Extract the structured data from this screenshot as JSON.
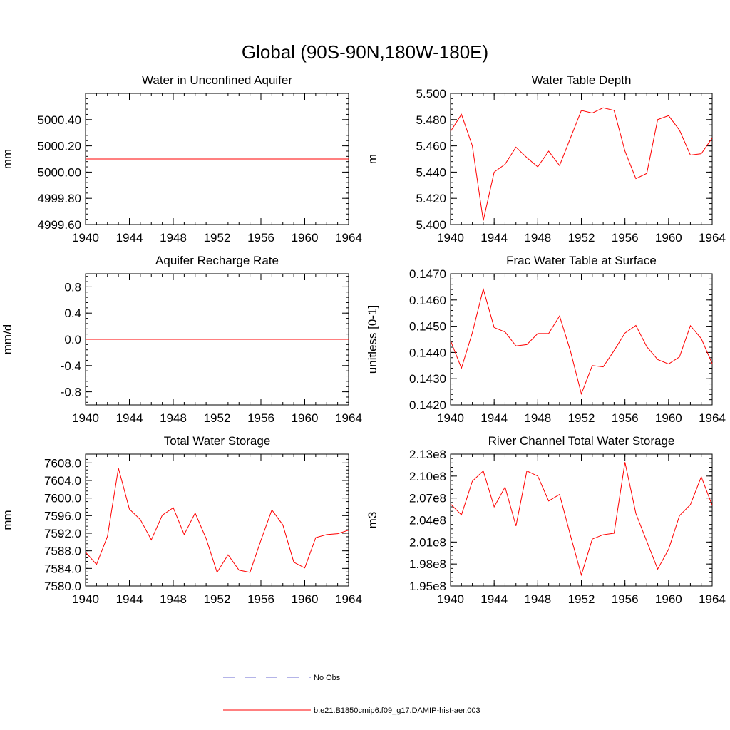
{
  "title": "Global (90S-90N,180W-180E)",
  "legend": {
    "placement": "bottom-center",
    "entries": [
      {
        "label": "No Obs",
        "color": "#6a6ad0",
        "dash": true
      },
      {
        "label": "b.e21.B1850cmip6.f09_g17.DAMIP-hist-aer.003",
        "color": "#ff0000",
        "dash": false
      }
    ]
  },
  "chart_data": [
    {
      "type": "line",
      "title": "Water in Unconfined Aquifer",
      "xlabel": "",
      "ylabel": "mm",
      "xlim": [
        1940,
        1964
      ],
      "ylim": [
        4999.6,
        5000.6
      ],
      "xticks": [
        1940,
        1944,
        1948,
        1952,
        1956,
        1960,
        1964
      ],
      "xtick_labels": [
        "1940",
        "1944",
        "1948",
        "1952",
        "1956",
        "1960",
        "1964"
      ],
      "yticks": [
        4999.6,
        4999.8,
        5000.0,
        5000.2,
        5000.4
      ],
      "ytick_labels": [
        "4999.60",
        "4999.80",
        "5000.00",
        "5000.20",
        "5000.40"
      ],
      "color": "#ff0000",
      "x": [
        1940,
        1941,
        1942,
        1943,
        1944,
        1945,
        1946,
        1947,
        1948,
        1949,
        1950,
        1951,
        1952,
        1953,
        1954,
        1955,
        1956,
        1957,
        1958,
        1959,
        1960,
        1961,
        1962,
        1963,
        1964
      ],
      "values": [
        5000.1,
        5000.1,
        5000.1,
        5000.1,
        5000.1,
        5000.1,
        5000.1,
        5000.1,
        5000.1,
        5000.1,
        5000.1,
        5000.1,
        5000.1,
        5000.1,
        5000.1,
        5000.1,
        5000.1,
        5000.1,
        5000.1,
        5000.1,
        5000.1,
        5000.1,
        5000.1,
        5000.1,
        5000.1
      ]
    },
    {
      "type": "line",
      "title": "Water Table Depth",
      "xlabel": "",
      "ylabel": "m",
      "xlim": [
        1940,
        1964
      ],
      "ylim": [
        5.4,
        5.5
      ],
      "xticks": [
        1940,
        1944,
        1948,
        1952,
        1956,
        1960,
        1964
      ],
      "xtick_labels": [
        "1940",
        "1944",
        "1948",
        "1952",
        "1956",
        "1960",
        "1964"
      ],
      "yticks": [
        5.4,
        5.42,
        5.44,
        5.46,
        5.48,
        5.5
      ],
      "ytick_labels": [
        "5.400",
        "5.420",
        "5.440",
        "5.460",
        "5.480",
        "5.500"
      ],
      "color": "#ff0000",
      "x": [
        1940,
        1941,
        1942,
        1943,
        1944,
        1945,
        1946,
        1947,
        1948,
        1949,
        1950,
        1951,
        1952,
        1953,
        1954,
        1955,
        1956,
        1957,
        1958,
        1959,
        1960,
        1961,
        1962,
        1963,
        1964
      ],
      "values": [
        5.471,
        5.484,
        5.46,
        5.403,
        5.44,
        5.446,
        5.459,
        5.451,
        5.444,
        5.456,
        5.445,
        5.466,
        5.487,
        5.485,
        5.489,
        5.487,
        5.456,
        5.435,
        5.439,
        5.48,
        5.483,
        5.472,
        5.453,
        5.454,
        5.466
      ]
    },
    {
      "type": "line",
      "title": "Aquifer Recharge Rate",
      "xlabel": "",
      "ylabel": "mm/d",
      "xlim": [
        1940,
        1964
      ],
      "ylim": [
        -1.0,
        1.0
      ],
      "xticks": [
        1940,
        1944,
        1948,
        1952,
        1956,
        1960,
        1964
      ],
      "xtick_labels": [
        "1940",
        "1944",
        "1948",
        "1952",
        "1956",
        "1960",
        "1964"
      ],
      "yticks": [
        -0.8,
        -0.4,
        0.0,
        0.4,
        0.8
      ],
      "ytick_labels": [
        "-0.8",
        "-0.4",
        "0.0",
        "0.4",
        "0.8"
      ],
      "color": "#ff0000",
      "x": [
        1940,
        1941,
        1942,
        1943,
        1944,
        1945,
        1946,
        1947,
        1948,
        1949,
        1950,
        1951,
        1952,
        1953,
        1954,
        1955,
        1956,
        1957,
        1958,
        1959,
        1960,
        1961,
        1962,
        1963,
        1964
      ],
      "values": [
        0,
        0,
        0,
        0,
        0,
        0,
        0,
        0,
        0,
        0,
        0,
        0,
        0,
        0,
        0,
        0,
        0,
        0,
        0,
        0,
        0,
        0,
        0,
        0,
        0
      ]
    },
    {
      "type": "line",
      "title": "Frac Water Table at Surface",
      "xlabel": "",
      "ylabel": "unitless [0-1]",
      "xlim": [
        1940,
        1964
      ],
      "ylim": [
        0.142,
        0.147
      ],
      "xticks": [
        1940,
        1944,
        1948,
        1952,
        1956,
        1960,
        1964
      ],
      "xtick_labels": [
        "1940",
        "1944",
        "1948",
        "1952",
        "1956",
        "1960",
        "1964"
      ],
      "yticks": [
        0.142,
        0.143,
        0.144,
        0.145,
        0.146,
        0.147
      ],
      "ytick_labels": [
        "0.1420",
        "0.1430",
        "0.1440",
        "0.1450",
        "0.1460",
        "0.1470"
      ],
      "color": "#ff0000",
      "x": [
        1940,
        1941,
        1942,
        1943,
        1944,
        1945,
        1946,
        1947,
        1948,
        1949,
        1950,
        1951,
        1952,
        1953,
        1954,
        1955,
        1956,
        1957,
        1958,
        1959,
        1960,
        1961,
        1962,
        1963,
        1964
      ],
      "values": [
        0.14445,
        0.1434,
        0.14475,
        0.14642,
        0.14495,
        0.14478,
        0.14425,
        0.1443,
        0.14472,
        0.14472,
        0.14539,
        0.14405,
        0.14242,
        0.1435,
        0.14345,
        0.14407,
        0.14474,
        0.14503,
        0.14422,
        0.14373,
        0.14356,
        0.14383,
        0.14502,
        0.14453,
        0.14357
      ]
    },
    {
      "type": "line",
      "title": "Total Water Storage",
      "xlabel": "",
      "ylabel": "mm",
      "xlim": [
        1940,
        1964
      ],
      "ylim": [
        7580.0,
        7610.0
      ],
      "xticks": [
        1940,
        1944,
        1948,
        1952,
        1956,
        1960,
        1964
      ],
      "xtick_labels": [
        "1940",
        "1944",
        "1948",
        "1952",
        "1956",
        "1960",
        "1964"
      ],
      "yticks": [
        7580,
        7584,
        7588,
        7592,
        7596,
        7600,
        7604,
        7608
      ],
      "ytick_labels": [
        "7580.0",
        "7584.0",
        "7588.0",
        "7592.0",
        "7596.0",
        "7600.0",
        "7604.0",
        "7608.0"
      ],
      "color": "#ff0000",
      "x": [
        1940,
        1941,
        1942,
        1943,
        1944,
        1945,
        1946,
        1947,
        1948,
        1949,
        1950,
        1951,
        1952,
        1953,
        1954,
        1955,
        1956,
        1957,
        1958,
        1959,
        1960,
        1961,
        1962,
        1963,
        1964
      ],
      "values": [
        7587.7,
        7584.9,
        7591.3,
        7606.8,
        7597.5,
        7595.1,
        7590.5,
        7596.1,
        7597.8,
        7591.7,
        7596.6,
        7590.8,
        7583.1,
        7587.1,
        7583.6,
        7583.1,
        7590.4,
        7597.3,
        7593.9,
        7585.4,
        7584.1,
        7591.0,
        7591.7,
        7591.9,
        7592.7
      ]
    },
    {
      "type": "line",
      "title": "River Channel Total Water Storage",
      "xlabel": "",
      "ylabel": "m3",
      "xlim": [
        1940,
        1964
      ],
      "ylim": [
        195000000.0,
        213000000.0
      ],
      "xticks": [
        1940,
        1944,
        1948,
        1952,
        1956,
        1960,
        1964
      ],
      "xtick_labels": [
        "1940",
        "1944",
        "1948",
        "1952",
        "1956",
        "1960",
        "1964"
      ],
      "yticks": [
        195000000.0,
        198000000.0,
        201000000.0,
        204000000.0,
        207000000.0,
        210000000.0,
        213000000.0
      ],
      "ytick_labels": [
        "1.95e8",
        "1.98e8",
        "2.01e8",
        "2.04e8",
        "2.07e8",
        "2.10e8",
        "2.13e8"
      ],
      "color": "#ff0000",
      "x": [
        1940,
        1941,
        1942,
        1943,
        1944,
        1945,
        1946,
        1947,
        1948,
        1949,
        1950,
        1951,
        1952,
        1953,
        1954,
        1955,
        1956,
        1957,
        1958,
        1959,
        1960,
        1961,
        1962,
        1963,
        1964
      ],
      "values": [
        206200000.0,
        204700000.0,
        209300000.0,
        210700000.0,
        205800000.0,
        208500000.0,
        203200000.0,
        210700000.0,
        210000000.0,
        206600000.0,
        207500000.0,
        201900000.0,
        196500000.0,
        201400000.0,
        202000000.0,
        202200000.0,
        211900000.0,
        204900000.0,
        201100000.0,
        197300000.0,
        200000000.0,
        204600000.0,
        206100000.0,
        209900000.0,
        206000000.0
      ]
    }
  ]
}
